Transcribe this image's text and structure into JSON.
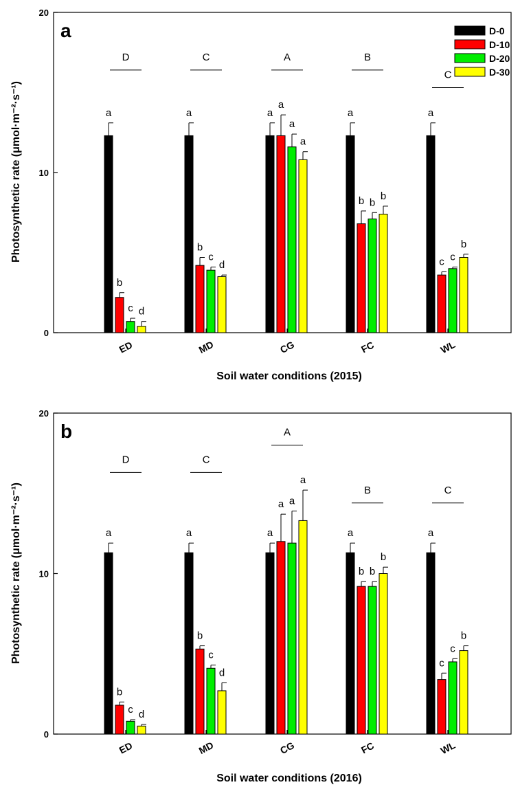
{
  "chart_data": [
    {
      "type": "bar",
      "panel": "a",
      "categories": [
        "ED",
        "MD",
        "CG",
        "FC",
        "WL"
      ],
      "xlabel": "Soil water conditions (2015)",
      "ylabel": "Photosynthetic rate (μmol·m⁻²·s⁻¹)",
      "ylim": [
        0,
        20
      ],
      "yticks": [
        "0",
        "10",
        "20"
      ],
      "legend_position": "top-right",
      "series": [
        {
          "name": "D-0",
          "color": "#000000",
          "values": [
            12.3,
            12.3,
            12.3,
            12.3,
            12.3
          ],
          "errors": [
            0.8,
            0.8,
            0.8,
            0.8,
            0.8
          ],
          "letters": [
            "a",
            "a",
            "a",
            "a",
            "a"
          ]
        },
        {
          "name": "D-10",
          "color": "#ff0000",
          "values": [
            2.2,
            4.2,
            12.3,
            6.8,
            3.6
          ],
          "errors": [
            0.3,
            0.5,
            1.3,
            0.8,
            0.2
          ],
          "letters": [
            "b",
            "b",
            "a",
            "b",
            "c"
          ]
        },
        {
          "name": "D-20",
          "color": "#00ee00",
          "values": [
            0.7,
            3.9,
            11.6,
            7.1,
            4.0
          ],
          "errors": [
            0.2,
            0.2,
            0.8,
            0.4,
            0.1
          ],
          "letters": [
            "c",
            "c",
            "a",
            "b",
            "c"
          ]
        },
        {
          "name": "D-30",
          "color": "#ffff00",
          "values": [
            0.4,
            3.5,
            10.8,
            7.4,
            4.7
          ],
          "errors": [
            0.3,
            0.1,
            0.5,
            0.5,
            0.2
          ],
          "letters": [
            "d",
            "d",
            "a",
            "b",
            "b"
          ]
        }
      ],
      "group_letters": [
        "D",
        "C",
        "A",
        "B",
        "C"
      ],
      "group_letter_levels": [
        16.4,
        16.4,
        16.4,
        16.4,
        15.3
      ]
    },
    {
      "type": "bar",
      "panel": "b",
      "categories": [
        "ED",
        "MD",
        "CG",
        "FC",
        "WL"
      ],
      "xlabel": "Soil water conditions (2016)",
      "ylabel": "Photosynthetic rate (μmol·m⁻²·s⁻¹)",
      "ylim": [
        0,
        20
      ],
      "yticks": [
        "0",
        "10",
        "20"
      ],
      "series": [
        {
          "name": "D-0",
          "color": "#000000",
          "values": [
            11.3,
            11.3,
            11.3,
            11.3,
            11.3
          ],
          "errors": [
            0.6,
            0.6,
            0.6,
            0.6,
            0.6
          ],
          "letters": [
            "a",
            "a",
            "a",
            "a",
            "a"
          ]
        },
        {
          "name": "D-10",
          "color": "#ff0000",
          "values": [
            1.8,
            5.3,
            12.0,
            9.2,
            3.4
          ],
          "errors": [
            0.2,
            0.2,
            1.7,
            0.3,
            0.4
          ],
          "letters": [
            "b",
            "b",
            "a",
            "b",
            "c"
          ]
        },
        {
          "name": "D-20",
          "color": "#00ee00",
          "values": [
            0.8,
            4.1,
            11.9,
            9.2,
            4.5
          ],
          "errors": [
            0.1,
            0.2,
            2.0,
            0.3,
            0.2
          ],
          "letters": [
            "c",
            "c",
            "a",
            "b",
            "c"
          ]
        },
        {
          "name": "D-30",
          "color": "#ffff00",
          "values": [
            0.5,
            2.7,
            13.3,
            10.0,
            5.2
          ],
          "errors": [
            0.1,
            0.5,
            1.9,
            0.4,
            0.3
          ],
          "letters": [
            "d",
            "d",
            "a",
            "b",
            "b"
          ]
        }
      ],
      "group_letters": [
        "D",
        "C",
        "A",
        "B",
        "C"
      ],
      "group_letter_levels": [
        16.3,
        16.3,
        18.0,
        14.4,
        14.4
      ]
    }
  ]
}
